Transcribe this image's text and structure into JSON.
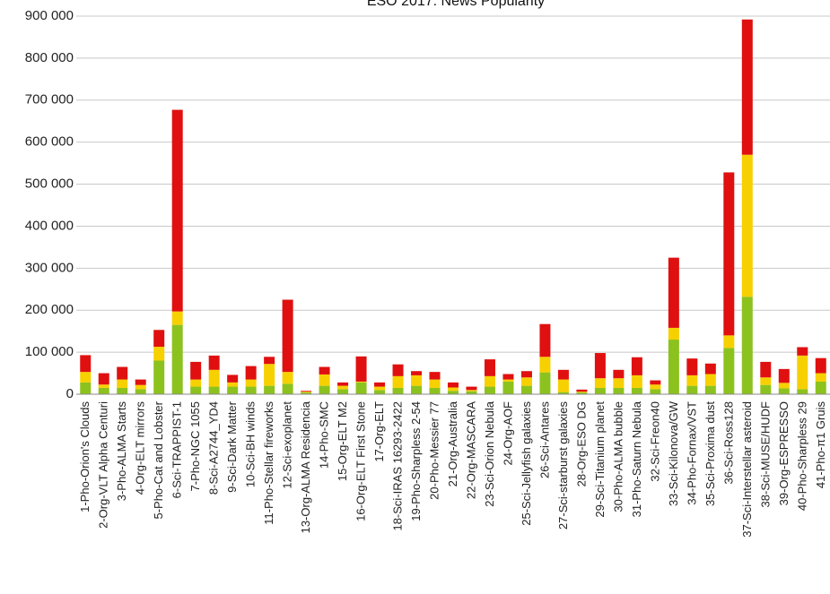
{
  "chart_data": {
    "type": "bar",
    "stacked": true,
    "title": "ESO 2017: News Popularity",
    "xlabel": "",
    "ylabel": "",
    "ylim": [
      0,
      900000
    ],
    "yticks": [
      0,
      100000,
      200000,
      300000,
      400000,
      500000,
      600000,
      700000,
      800000,
      900000
    ],
    "ytick_labels": [
      "0",
      "100 000",
      "200 000",
      "300 000",
      "400 000",
      "500 000",
      "600 000",
      "700 000",
      "800 000",
      "900 000"
    ],
    "grid": true,
    "legend": "none",
    "colors": [
      "#8cc21e",
      "#f7d000",
      "#e01010"
    ],
    "categories": [
      "1-Pho-Orion's Clouds",
      "2-Org-VLT Alpha Centuri",
      "3-Pho-ALMA Starts",
      "4-Org-ELT mirrors",
      "5-Pho-Cat and Lobster",
      "6-Sci-TRAPPIST-1",
      "7-Pho-NGC 1055",
      "8-Sci-A2744_YD4",
      "9-Sci-Dark Matter",
      "10-Sci-BH winds",
      "11-Pho-Stellar fireworks",
      "12-Sci-exoplanet",
      "13-Org-ALMA Residencia",
      "14-Pho-SMC",
      "15-Org-ELT M2",
      "16-Org-ELT First Stone",
      "17-Org-ELT",
      "18-Sci-IRAS 16293-2422",
      "19-Pho-Sharpless 2-54",
      "20-Pho-Messier 77",
      "21-Org-Australia",
      "22-Org-MASCARA",
      "23-Sci-Orion Nebula",
      "24-Org-AOF",
      "25-Sci-Jellyfish galaxies",
      "26-Sci-Antares",
      "27-Sci-starburst galaxies",
      "28-Org-ESO DG",
      "29-Sci-Titanium planet",
      "30-Pho-ALMA bubble",
      "31-Pho-Saturn Nebula",
      "32-Sci-Freon40",
      "33-Sci-Kilonova/GW",
      "34-Pho-Fornax/VST",
      "35-Sci-Proxima dust",
      "36-Sci-Ross128",
      "37-Sci-Interstellar asteroid",
      "38-Sci-MUSE/HUDF",
      "39-Org-ESPRESSO",
      "40-Pho-Sharpless 29",
      "41-Pho-π1 Gruis"
    ],
    "series": [
      {
        "values": [
          28000,
          15000,
          15000,
          12000,
          80000,
          165000,
          18000,
          18000,
          18000,
          18000,
          20000,
          25000,
          4000,
          20000,
          12000,
          28000,
          10000,
          15000,
          20000,
          15000,
          8000,
          7000,
          18000,
          30000,
          20000,
          52000,
          5000,
          4000,
          15000,
          15000,
          15000,
          12000,
          130000,
          20000,
          20000,
          110000,
          232000,
          22000,
          14000,
          12000,
          30000
        ]
      },
      {
        "values": [
          25000,
          8000,
          20000,
          10000,
          33000,
          32000,
          17000,
          40000,
          10000,
          17000,
          52000,
          28000,
          2000,
          27000,
          8000,
          2000,
          8000,
          28000,
          25000,
          20000,
          8000,
          3000,
          25000,
          5000,
          20000,
          37000,
          30000,
          2000,
          23000,
          23000,
          30000,
          11000,
          28000,
          25000,
          28000,
          30000,
          338000,
          18000,
          13000,
          80000,
          20000
        ]
      },
      {
        "values": [
          40000,
          27000,
          30000,
          13000,
          40000,
          480000,
          42000,
          34000,
          18000,
          32000,
          17000,
          172000,
          2000,
          18000,
          8000,
          60000,
          10000,
          28000,
          10000,
          18000,
          12000,
          8000,
          40000,
          13000,
          15000,
          78000,
          23000,
          5000,
          60000,
          20000,
          43000,
          10000,
          167000,
          40000,
          25000,
          388000,
          322000,
          37000,
          33000,
          20000,
          36000
        ]
      }
    ]
  }
}
